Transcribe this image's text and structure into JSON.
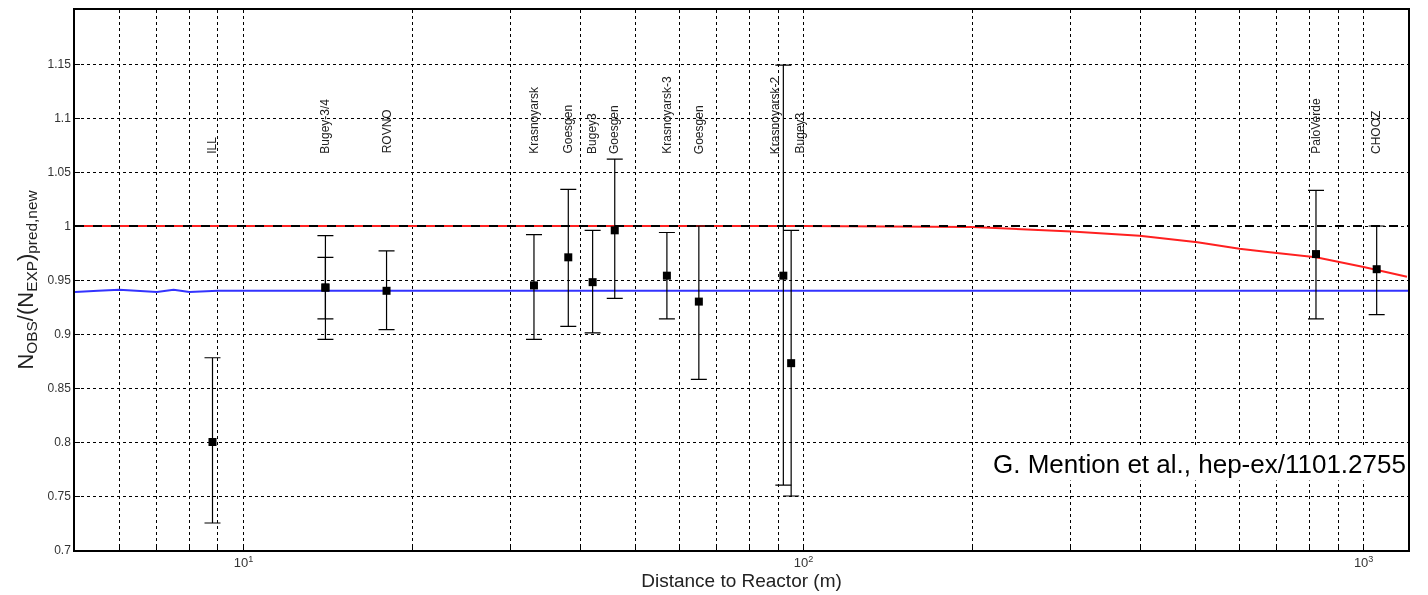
{
  "chart_data": {
    "type": "scatter",
    "xlabel": "Distance to Reactor (m)",
    "ylabel": "N$_{OBS}$/(N$_{EXP}$)$_{pred,new}$",
    "log": "x",
    "xlim": [
      5,
      1200
    ],
    "xticks": [
      {
        "value": 6,
        "label": null
      },
      {
        "value": 7,
        "label": null
      },
      {
        "value": 8,
        "label": null
      },
      {
        "value": 9,
        "label": null
      },
      {
        "value": 10,
        "label": "10$^{1}$"
      },
      {
        "value": 20,
        "label": null
      },
      {
        "value": 30,
        "label": null
      },
      {
        "value": 40,
        "label": null
      },
      {
        "value": 50,
        "label": null
      },
      {
        "value": 60,
        "label": null
      },
      {
        "value": 70,
        "label": null
      },
      {
        "value": 80,
        "label": null
      },
      {
        "value": 90,
        "label": null
      },
      {
        "value": 100,
        "label": "10$^{2}$"
      },
      {
        "value": 200,
        "label": null
      },
      {
        "value": 300,
        "label": null
      },
      {
        "value": 400,
        "label": null
      },
      {
        "value": 500,
        "label": null
      },
      {
        "value": 600,
        "label": null
      },
      {
        "value": 700,
        "label": null
      },
      {
        "value": 800,
        "label": null
      },
      {
        "value": 900,
        "label": null
      },
      {
        "value": 1000,
        "label": "10$^{3}$"
      }
    ],
    "ylim": [
      0.7,
      1.2
    ],
    "yticks": [
      0.7,
      0.75,
      0.8,
      0.85,
      0.9,
      0.95,
      1,
      1.05,
      1.1,
      1.15
    ],
    "grid": true,
    "series": [
      {
        "marker": "square",
        "color": "#000000",
        "x": [
          8.8,
          14,
          14,
          18,
          33,
          38,
          42,
          46,
          57,
          65,
          92,
          95,
          822,
          1055
        ],
        "values": [
          0.8,
          0.943,
          0.943,
          0.94,
          0.945,
          0.971,
          0.948,
          0.996,
          0.954,
          0.93,
          0.954,
          0.873,
          0.974,
          0.96
        ],
        "errors": [
          [
            0.725,
            0.878
          ],
          [
            0.895,
            0.991
          ],
          [
            0.914,
            0.971
          ],
          [
            0.904,
            0.977
          ],
          [
            0.895,
            0.992
          ],
          [
            0.907,
            1.034
          ],
          [
            0.901,
            0.996
          ],
          [
            0.933,
            1.062
          ],
          [
            0.914,
            0.994
          ],
          [
            0.858,
            1.0
          ],
          [
            0.76,
            1.149
          ],
          [
            0.75,
            0.996
          ],
          [
            0.914,
            1.033
          ],
          [
            0.918,
            1.0
          ]
        ]
      },
      {
        "type": "line",
        "color": "#3333ff",
        "line_style": "solid",
        "x": [
          5,
          5.5,
          6,
          7,
          7.5,
          8,
          9,
          10,
          100,
          1200
        ],
        "values": [
          0.939,
          0.94,
          0.941,
          0.939,
          0.941,
          0.939,
          0.94,
          0.94,
          0.94,
          0.94
        ]
      },
      {
        "type": "line",
        "color": "#ff2020",
        "line_style": "solid",
        "x": [
          5,
          100,
          200,
          301,
          398,
          505,
          600,
          700,
          822,
          1000,
          1195
        ],
        "values": [
          1,
          1,
          0.999,
          0.995,
          0.991,
          0.985,
          0.979,
          0.975,
          0.971,
          0.962,
          0.953
        ]
      }
    ],
    "ref_lines": [
      {
        "axis": "y",
        "value": 1,
        "color": "#000000",
        "line_style": "dashed"
      }
    ],
    "annotations": [
      "ILL",
      "Bugey-3/4",
      "ROVNO",
      "Krasnoyarsk",
      "Goesgen",
      "Bugey3",
      "Goesgen",
      "Krasnoyarsk-3",
      "Goesgen",
      "Krasnoyarsk-2",
      "Bugey3",
      "PaloVerde",
      "CHOOZ",
      "G. Mention et al., hep-ex/1101.2755"
    ]
  }
}
